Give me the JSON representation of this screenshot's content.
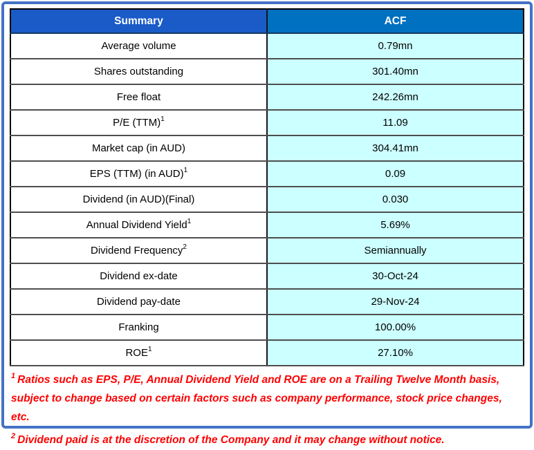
{
  "table": {
    "header": {
      "left": "Summary",
      "right": "ACF"
    },
    "rows": [
      {
        "label": "Average volume",
        "sup": "",
        "value": "0.79mn"
      },
      {
        "label": "Shares outstanding",
        "sup": "",
        "value": "301.40mn"
      },
      {
        "label": "Free float",
        "sup": "",
        "value": "242.26mn"
      },
      {
        "label": "P/E (TTM)",
        "sup": "1",
        "value": "11.09"
      },
      {
        "label": "Market cap (in AUD)",
        "sup": "",
        "value": "304.41mn"
      },
      {
        "label": "EPS (TTM) (in AUD)",
        "sup": "1",
        "value": "0.09"
      },
      {
        "label": "Dividend (in AUD)(Final)",
        "sup": "",
        "value": "0.030"
      },
      {
        "label": "Annual Dividend Yield",
        "sup": "1",
        "value": "5.69%"
      },
      {
        "label": "Dividend Frequency",
        "sup": "2",
        "value": "Semiannually"
      },
      {
        "label": "Dividend ex-date",
        "sup": "",
        "value": "30-Oct-24"
      },
      {
        "label": "Dividend pay-date",
        "sup": "",
        "value": "29-Nov-24"
      },
      {
        "label": "Franking",
        "sup": "",
        "value": "100.00%"
      },
      {
        "label": "ROE",
        "sup": "1",
        "value": "27.10%"
      }
    ]
  },
  "footnotes": [
    {
      "marker": "1",
      "text": "Ratios such as EPS, P/E, Annual Dividend Yield and ROE are on a Trailing Twelve Month basis, subject to change based on certain factors such as company performance, stock price changes, etc."
    },
    {
      "marker": "2",
      "text": "Dividend paid is at the discretion of the Company and it may change without notice."
    }
  ],
  "colors": {
    "frame_border": "#4472C4",
    "header_left_bg": "#1A5BC8",
    "header_right_bg": "#0070C0",
    "value_cell_bg": "#CCFFFF",
    "footnote_text": "#FF0000"
  }
}
